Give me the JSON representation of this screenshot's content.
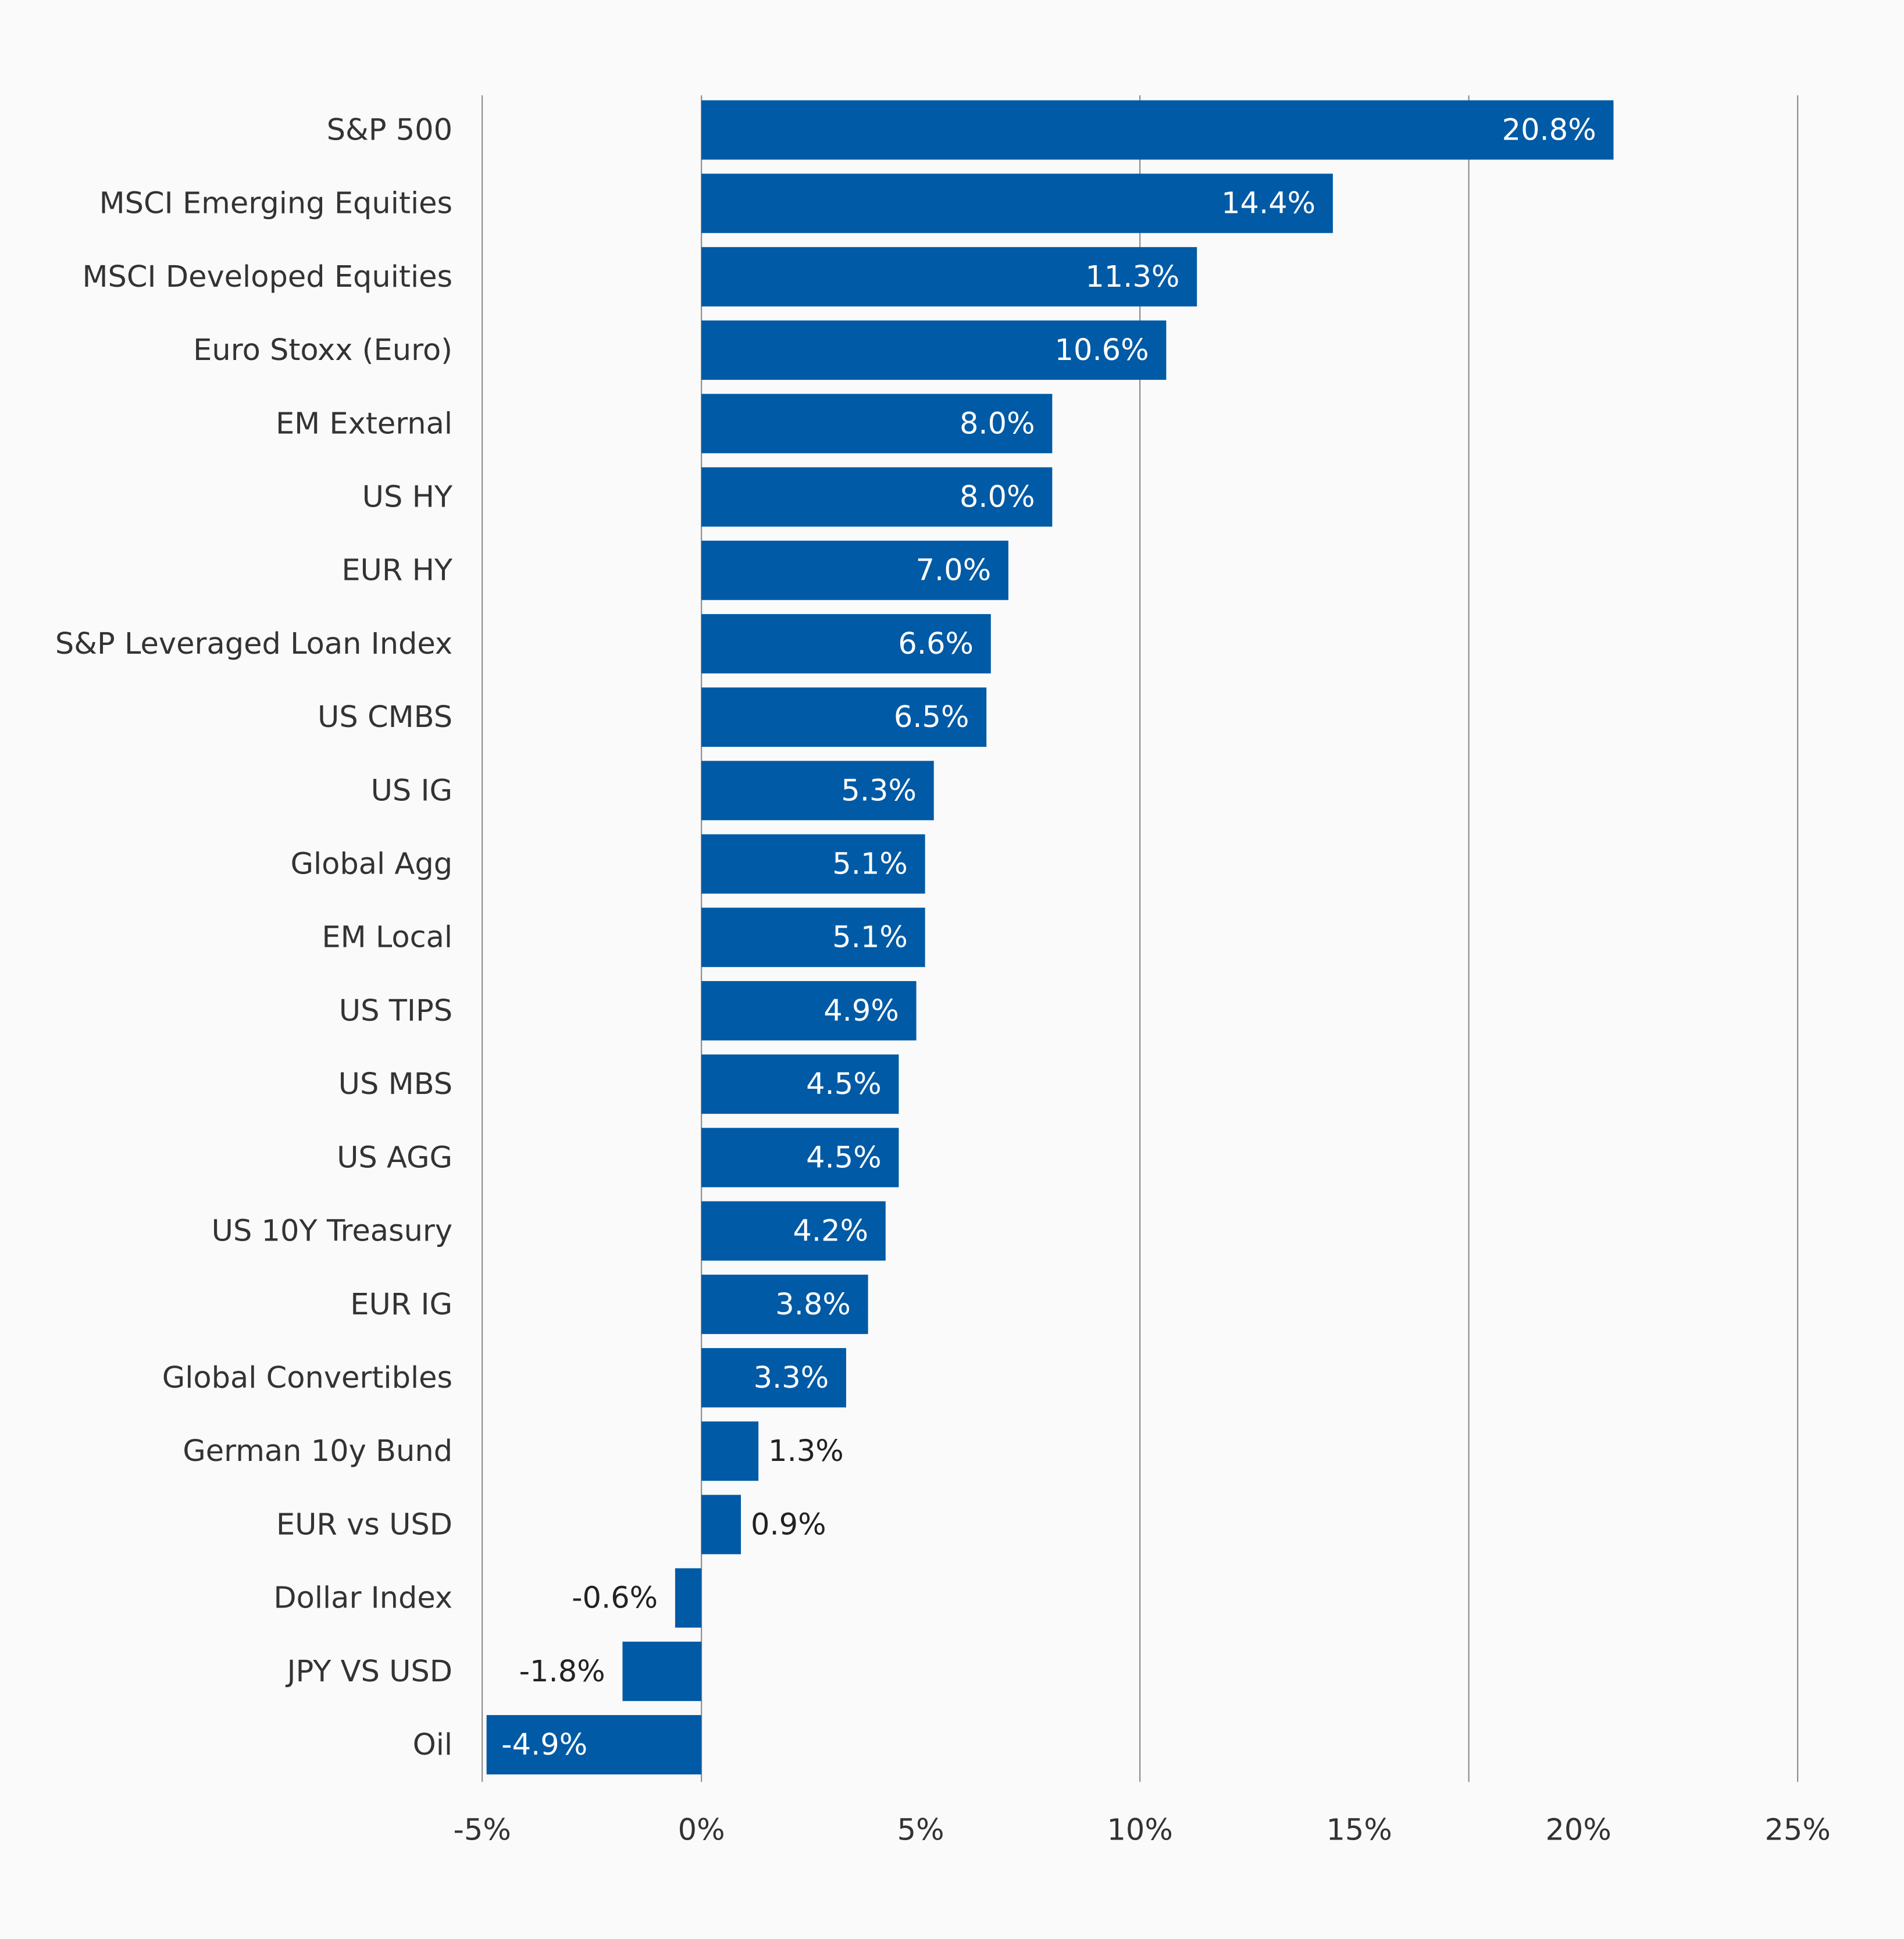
{
  "chart_data": {
    "type": "bar",
    "orientation": "horizontal",
    "title": "",
    "xlabel": "",
    "ylabel": "",
    "xlim": [
      -5,
      25
    ],
    "x_ticks": [
      "-5%",
      "0%",
      "5%",
      "10%",
      "15%",
      "20%",
      "25%"
    ],
    "x_tick_values": [
      -5,
      0,
      5,
      10,
      15,
      20,
      25
    ],
    "gridlines_at": [
      -5,
      0,
      10,
      17.5,
      25
    ],
    "bar_color": "#005aa5",
    "categories": [
      "S&P 500",
      "MSCI Emerging Equities",
      "MSCI Developed Equities",
      "Euro Stoxx (Euro)",
      "EM External",
      "US HY",
      "EUR HY",
      "S&P Leveraged Loan Index",
      "US CMBS",
      "US IG",
      "Global Agg",
      "EM Local",
      "US TIPS",
      "US MBS",
      "US AGG",
      "US 10Y Treasury",
      "EUR IG",
      "Global Convertibles",
      "German 10y Bund",
      "EUR vs USD",
      "Dollar Index",
      "JPY VS USD",
      "Oil"
    ],
    "values": [
      20.8,
      14.4,
      11.3,
      10.6,
      8.0,
      8.0,
      7.0,
      6.6,
      6.5,
      5.3,
      5.1,
      5.1,
      4.9,
      4.5,
      4.5,
      4.2,
      3.8,
      3.3,
      1.3,
      0.9,
      -0.6,
      -1.8,
      -4.9
    ],
    "labels": [
      "20.8%",
      "14.4%",
      "11.3%",
      "10.6%",
      "8.0%",
      "8.0%",
      "7.0%",
      "6.6%",
      "6.5%",
      "5.3%",
      "5.1%",
      "5.1%",
      "4.9%",
      "4.5%",
      "4.5%",
      "4.2%",
      "3.8%",
      "3.3%",
      "1.3%",
      "0.9%",
      "-0.6%",
      "-1.8%",
      "-4.9%"
    ]
  }
}
